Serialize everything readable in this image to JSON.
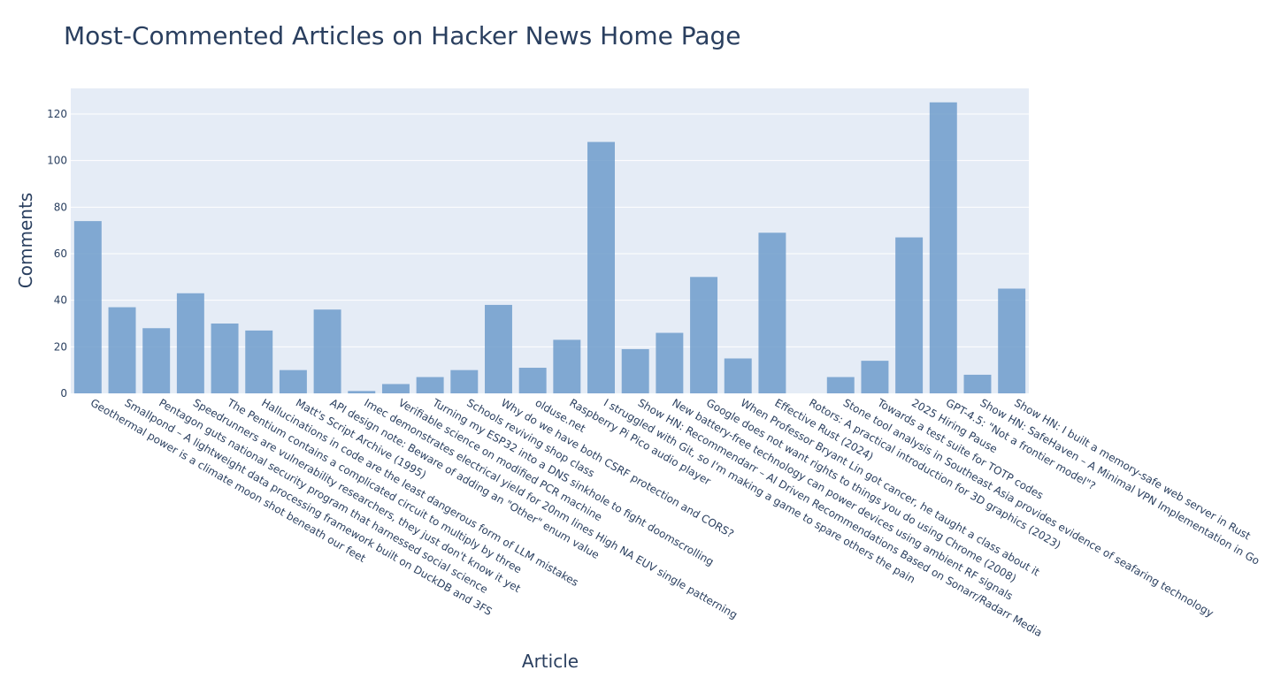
{
  "colors": {
    "bar": "#6f9ccb",
    "plot_bg": "#e5ecf6",
    "grid": "#ffffff",
    "text": "#2a3f5f"
  },
  "chart_data": {
    "type": "bar",
    "title": "Most-Commented Articles on Hacker News Home Page",
    "xlabel": "Article",
    "ylabel": "Comments",
    "ylim": [
      0,
      131
    ],
    "yticks": [
      0,
      20,
      40,
      60,
      80,
      100,
      120
    ],
    "grid": true,
    "categories": [
      "Geothermal power is a climate moon shot beneath our feet",
      "Smallpond – A lightweight data processing framework built on DuckDB and 3FS",
      "Pentagon guts national security program that harnessed social science",
      "Speedrunners are vulnerability researchers, they just don't know it yet",
      "The Pentium contains a complicated circuit to multiply by three",
      "Hallucinations in code are the least dangerous form of LLM mistakes",
      "Matt's Script Archive (1995)",
      "API design note: Beware of adding an \"Other\" enum value",
      "Imec demonstrates electrical yield for 20nm lines High NA EUV single patterning",
      "Verifiable science on modified PCR machine",
      "Turning my ESP32 into a DNS sinkhole to fight doomscrolling",
      "Schools reviving shop class",
      "Why do we have both CSRF protection and CORS?",
      "olduse.net",
      "Raspberry Pi Pico audio player",
      "I struggled with Git, so I'm making a game to spare others the pain",
      "Show HN: Recommendarr – AI Driven Recommendations Based on Sonarr/Radarr Media",
      "New battery-free technology can power devices using ambient RF signals",
      "Google does not want rights to things you do using Chrome (2008)",
      "When Professor Bryant Lin got cancer, he taught a class about it",
      "Effective Rust (2024)",
      "Rotors: A practical introduction for 3D graphics (2023)",
      "Stone tool analysis in Southeast Asia provides evidence of seafaring technology",
      "Towards a test suite for TOTP codes",
      "2025 Hiring Pause",
      "GPT-4.5: \"Not a frontier model\"?",
      "Show HN: SafeHaven – A Minimal VPN Implementation in Go",
      "Show HN: I built a memory-safe web server in Rust"
    ],
    "values": [
      74,
      37,
      28,
      43,
      30,
      27,
      10,
      36,
      1,
      4,
      7,
      10,
      38,
      11,
      23,
      108,
      19,
      26,
      50,
      15,
      69,
      0,
      7,
      14,
      67,
      125,
      8,
      45
    ]
  }
}
